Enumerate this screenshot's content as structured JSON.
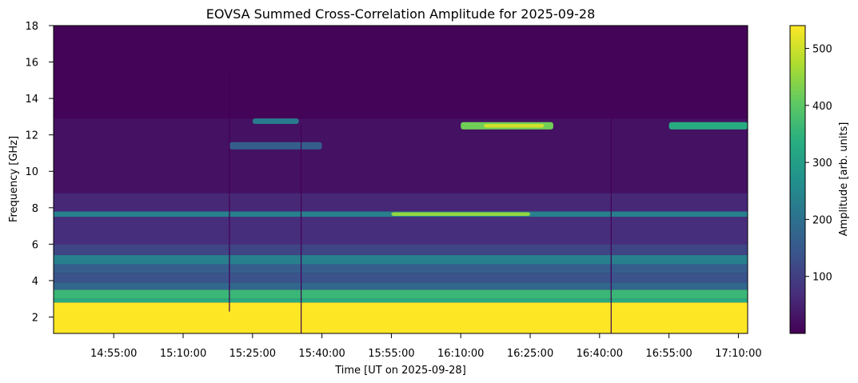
{
  "chart_data": {
    "type": "heatmap",
    "title": "EOVSA Summed Cross-Correlation Amplitude for 2025-09-28",
    "xlabel": "Time [UT on 2025-09-28]",
    "ylabel": "Frequency [GHz]",
    "colorbar_label": "Amplitude [arb. units]",
    "colormap": "viridis",
    "x_start": "14:42:00",
    "x_end": "17:12:00",
    "x_ticks": [
      "14:55:00",
      "15:10:00",
      "15:25:00",
      "15:40:00",
      "15:55:00",
      "16:10:00",
      "16:25:00",
      "16:40:00",
      "16:55:00",
      "17:10:00"
    ],
    "ylim": [
      1.1,
      18
    ],
    "y_ticks": [
      2,
      4,
      6,
      8,
      10,
      12,
      14,
      16,
      18
    ],
    "clim": [
      0,
      540
    ],
    "colorbar_ticks": [
      100,
      200,
      300,
      400,
      500
    ],
    "frequency_bands": [
      {
        "f_min": 1.1,
        "f_max": 2.8,
        "amplitude": 540
      },
      {
        "f_min": 2.8,
        "f_max": 3.0,
        "amplitude": 330
      },
      {
        "f_min": 3.0,
        "f_max": 3.5,
        "amplitude": 360
      },
      {
        "f_min": 3.5,
        "f_max": 3.9,
        "amplitude": 180
      },
      {
        "f_min": 3.9,
        "f_max": 4.4,
        "amplitude": 140
      },
      {
        "f_min": 4.4,
        "f_max": 4.9,
        "amplitude": 160
      },
      {
        "f_min": 4.9,
        "f_max": 5.4,
        "amplitude": 230
      },
      {
        "f_min": 5.4,
        "f_max": 6.0,
        "amplitude": 110
      },
      {
        "f_min": 6.0,
        "f_max": 7.5,
        "amplitude": 70
      },
      {
        "f_min": 7.5,
        "f_max": 7.8,
        "amplitude": 230
      },
      {
        "f_min": 7.8,
        "f_max": 8.8,
        "amplitude": 60
      },
      {
        "f_min": 8.8,
        "f_max": 12.9,
        "amplitude": 25
      },
      {
        "f_min": 12.9,
        "f_max": 18.0,
        "amplitude": 5
      }
    ],
    "features": [
      {
        "t_start": "15:20:00",
        "t_end": "15:40:00",
        "f_min": 11.2,
        "f_max": 11.6,
        "amplitude": 160
      },
      {
        "t_start": "15:25:00",
        "t_end": "15:35:00",
        "f_min": 12.6,
        "f_max": 12.9,
        "amplitude": 220
      },
      {
        "t_start": "16:10:00",
        "t_end": "16:30:00",
        "f_min": 12.3,
        "f_max": 12.7,
        "amplitude": 420
      },
      {
        "t_start": "16:15:00",
        "t_end": "16:28:00",
        "f_min": 12.4,
        "f_max": 12.6,
        "amplitude": 500
      },
      {
        "t_start": "16:55:00",
        "t_end": "17:12:00",
        "f_min": 12.3,
        "f_max": 12.7,
        "amplitude": 330
      },
      {
        "t_start": "15:55:00",
        "t_end": "16:25:00",
        "f_min": 7.55,
        "f_max": 7.75,
        "amplitude": 450
      }
    ],
    "gaps": [
      {
        "time": "15:20:00",
        "f_min": 2.3,
        "f_max": 15.5
      },
      {
        "time": "15:35:30",
        "f_min": 1.1,
        "f_max": 12.5
      },
      {
        "time": "16:42:30",
        "f_min": 1.1,
        "f_max": 13.0
      }
    ]
  }
}
